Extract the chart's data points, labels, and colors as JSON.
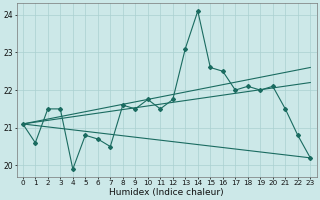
{
  "xlabel": "Humidex (Indice chaleur)",
  "xlim": [
    -0.5,
    23.5
  ],
  "ylim": [
    19.7,
    24.3
  ],
  "yticks": [
    20,
    21,
    22,
    23,
    24
  ],
  "xticks": [
    0,
    1,
    2,
    3,
    4,
    5,
    6,
    7,
    8,
    9,
    10,
    11,
    12,
    13,
    14,
    15,
    16,
    17,
    18,
    19,
    20,
    21,
    22,
    23
  ],
  "bg_color": "#cce8e8",
  "line_color": "#1a6b60",
  "grid_color": "#aad0d0",
  "series0": [
    21.1,
    20.6,
    21.5,
    21.5,
    19.9,
    20.8,
    20.7,
    20.5,
    21.6,
    21.5,
    21.75,
    21.5,
    21.75,
    23.1,
    24.1,
    22.6,
    22.5,
    22.0,
    22.1,
    22.0,
    22.1,
    21.5,
    20.8,
    20.2
  ],
  "line_upper": [
    [
      0,
      21.1
    ],
    [
      23,
      22.6
    ]
  ],
  "line_middle": [
    [
      0,
      21.1
    ],
    [
      23,
      22.2
    ]
  ],
  "line_lower": [
    [
      0,
      21.1
    ],
    [
      23,
      20.2
    ]
  ]
}
